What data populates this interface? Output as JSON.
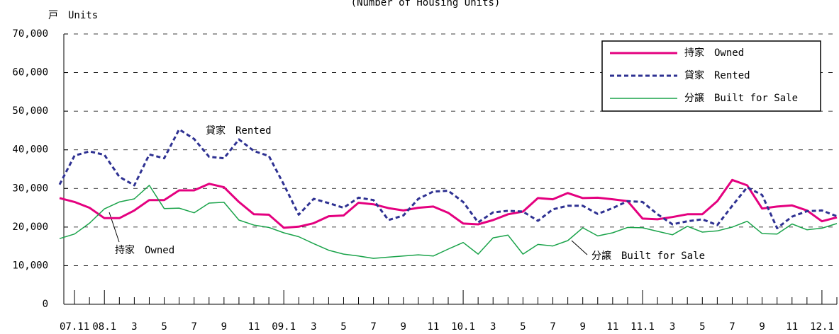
{
  "chart_data": {
    "type": "line",
    "title": "(Number of Housing Units)",
    "y_unit_label": "戸　Units",
    "categories": [
      null,
      "07.11",
      null,
      "08.1",
      null,
      "3",
      null,
      "5",
      null,
      "7",
      null,
      "9",
      null,
      "11",
      null,
      "09.1",
      null,
      "3",
      null,
      "5",
      null,
      "7",
      null,
      "9",
      null,
      "11",
      null,
      "10.1",
      null,
      "3",
      null,
      "5",
      null,
      "7",
      null,
      "9",
      null,
      "11",
      null,
      "11.1",
      null,
      "3",
      null,
      "5",
      null,
      "7",
      null,
      "9",
      null,
      "11",
      null,
      "12.1",
      null
    ],
    "series": [
      {
        "name": "持家　Owned",
        "color": "#e4007f",
        "style": "solid",
        "width": 3,
        "values": [
          27500,
          26500,
          25000,
          22300,
          22300,
          24300,
          27000,
          27000,
          29500,
          29500,
          31200,
          30300,
          26500,
          23300,
          23200,
          19800,
          20100,
          21000,
          22800,
          23000,
          26300,
          25900,
          24900,
          24300,
          25000,
          25300,
          23700,
          20900,
          20700,
          21800,
          23300,
          24000,
          27500,
          27200,
          28800,
          27500,
          27600,
          27200,
          26700,
          22200,
          22000,
          22600,
          23300,
          23300,
          26700,
          32200,
          30800,
          24800,
          25300,
          25600,
          24300,
          21500,
          22500
        ]
      },
      {
        "name": "貸家　Rented",
        "color": "#2e3192",
        "style": "dashed",
        "width": 3,
        "values": [
          31000,
          38500,
          39600,
          38700,
          33000,
          30800,
          38800,
          37800,
          45300,
          42800,
          38200,
          37800,
          42700,
          39700,
          38400,
          31000,
          23200,
          27300,
          26200,
          25000,
          27600,
          27000,
          21800,
          23000,
          27300,
          29200,
          29400,
          26500,
          21200,
          23800,
          24200,
          24000,
          21600,
          24600,
          25500,
          25500,
          23400,
          24900,
          26700,
          26500,
          23300,
          20700,
          21500,
          22000,
          20500,
          25500,
          30300,
          28300,
          19700,
          22700,
          24100,
          24300,
          22800
        ]
      },
      {
        "name": "分譲　Built for Sale",
        "color": "#1aa34a",
        "style": "solid",
        "width": 1.5,
        "values": [
          17000,
          18200,
          21000,
          24700,
          26500,
          27300,
          30800,
          24800,
          24900,
          23700,
          26200,
          26400,
          21800,
          20500,
          19900,
          18500,
          17500,
          15700,
          14000,
          13000,
          12500,
          11900,
          12200,
          12500,
          12800,
          12500,
          14300,
          16000,
          13000,
          17200,
          17900,
          13000,
          15500,
          15100,
          16500,
          19800,
          17700,
          18500,
          19900,
          19800,
          18900,
          18000,
          20200,
          18700,
          19000,
          20000,
          21500,
          18300,
          18200,
          20800,
          19300,
          19700,
          20900
        ]
      }
    ],
    "annotations": [
      "貸家　Rented",
      "持家　Owned",
      "分譲　Built for Sale"
    ],
    "ylim": [
      0,
      70000
    ],
    "yticks": [
      0,
      {
        "value": 10000,
        "label": "10,000"
      },
      {
        "value": 20000,
        "label": "20,000"
      },
      {
        "value": 30000,
        "label": "30,000"
      },
      {
        "value": 40000,
        "label": "40,000"
      },
      {
        "value": 50000,
        "label": "50,000"
      },
      {
        "value": 60000,
        "label": "60,000"
      },
      {
        "value": 70000,
        "label": "70,000"
      }
    ],
    "grid": true,
    "legend": "upper right"
  }
}
